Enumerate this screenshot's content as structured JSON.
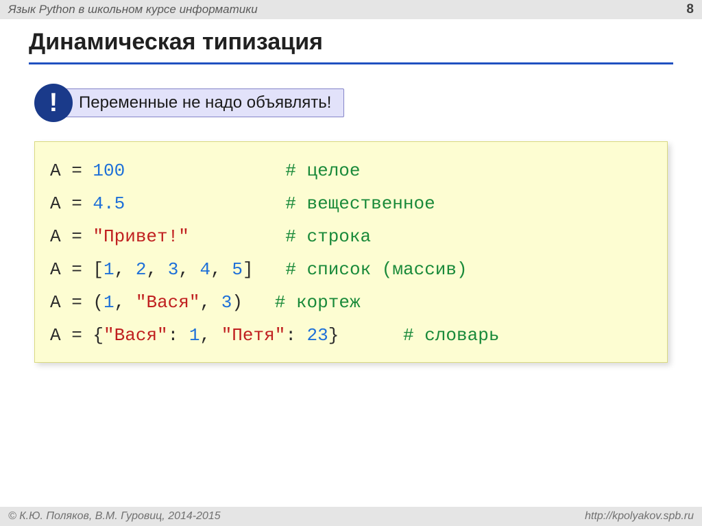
{
  "header": {
    "title": "Язык Python в школьном курсе информатики",
    "page": "8"
  },
  "slide": {
    "title": "Динамическая типизация",
    "callout_mark": "!",
    "callout_text": "Переменные не надо объявлять!"
  },
  "code": {
    "l1": {
      "a": "A = ",
      "v": "100",
      "sp": "               ",
      "c": "# целое"
    },
    "l2": {
      "a": "A = ",
      "v": "4.5",
      "sp": "               ",
      "c": "# вещественное"
    },
    "l3": {
      "a": "A = ",
      "v": "\"Привет!\"",
      "sp": "         ",
      "c": "# строка"
    },
    "l4": {
      "a": "A = ",
      "b1": "[",
      "n1": "1",
      "p1": ", ",
      "n2": "2",
      "p2": ", ",
      "n3": "3",
      "p3": ", ",
      "n4": "4",
      "p4": ", ",
      "n5": "5",
      "b2": "]",
      "sp": "   ",
      "c": "# список (массив)"
    },
    "l5": {
      "a": "A = ",
      "b1": "(",
      "n1": "1",
      "p1": ", ",
      "s1": "\"Вася\"",
      "p2": ", ",
      "n2": "3",
      "b2": ")",
      "sp": "   ",
      "c": "# кортеж"
    },
    "l6": {
      "a": "A = ",
      "b1": "{",
      "s1": "\"Вася\"",
      "p1": ": ",
      "n1": "1",
      "p2": ", ",
      "s2": "\"Петя\"",
      "p3": ": ",
      "n2": "23",
      "b2": "}",
      "sp": "      ",
      "c": "# словарь"
    }
  },
  "footer": {
    "left": "© К.Ю. Поляков, В.М. Гуровиц, 2014-2015",
    "right": "http://kpolyakov.spb.ru"
  },
  "colors": {
    "header_bg": "#e5e5e5",
    "underline": "#2050c0",
    "callout_circle": "#1a3a8a",
    "callout_box_bg": "#e2e2fa",
    "callout_box_border": "#8484c8",
    "code_bg": "#fdfdd2",
    "num": "#1e70d8",
    "str": "#c02020",
    "comment": "#1a8a3a"
  }
}
